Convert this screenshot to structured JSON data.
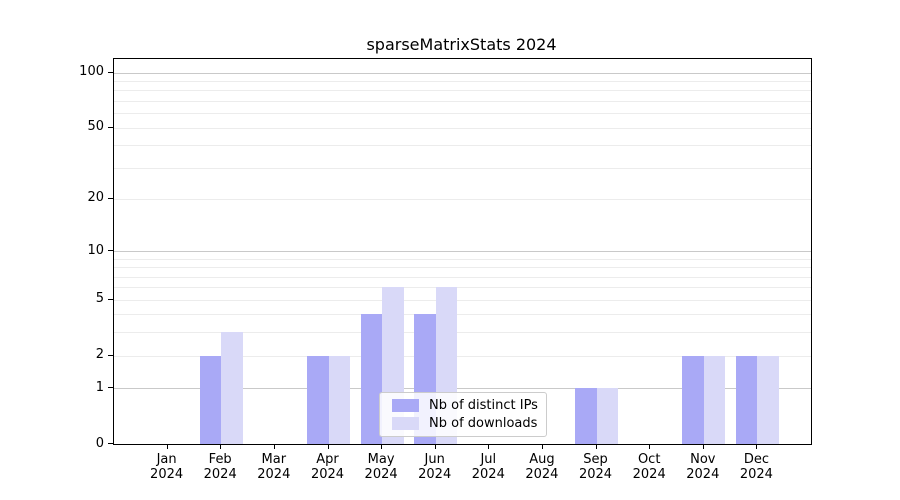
{
  "title": "sparseMatrixStats 2024",
  "chart_data": {
    "type": "bar",
    "title": "sparseMatrixStats 2024",
    "categories": [
      "Jan",
      "Feb",
      "Mar",
      "Apr",
      "May",
      "Jun",
      "Jul",
      "Aug",
      "Sep",
      "Oct",
      "Nov",
      "Dec"
    ],
    "year_label": "2024",
    "series": [
      {
        "name": "Nb of distinct IPs",
        "color": "#a9a9f6",
        "values": [
          0,
          2,
          0,
          2,
          4,
          4,
          0,
          0,
          1,
          0,
          2,
          2
        ]
      },
      {
        "name": "Nb of downloads",
        "color": "#d9d9f8",
        "values": [
          0,
          3,
          0,
          2,
          6,
          6,
          0,
          0,
          1,
          0,
          2,
          2
        ]
      }
    ],
    "xlabel": "",
    "ylabel": "",
    "yscale": "log1p",
    "yticks": [
      0,
      1,
      2,
      5,
      10,
      20,
      50,
      100
    ],
    "minor_yticks": [
      3,
      4,
      6,
      7,
      8,
      9,
      30,
      40,
      60,
      70,
      80,
      90
    ],
    "decade_gridlines": [
      1,
      10,
      100
    ],
    "ylim": [
      0,
      120
    ],
    "grid": true,
    "legend_position": "lower center",
    "colors": {
      "bar_dark": "#a9a9f6",
      "bar_light": "#d9d9f8",
      "grid_major": "#c9c9c9",
      "grid_minor": "#ececec",
      "axis": "#000000",
      "background": "#ffffff"
    }
  }
}
